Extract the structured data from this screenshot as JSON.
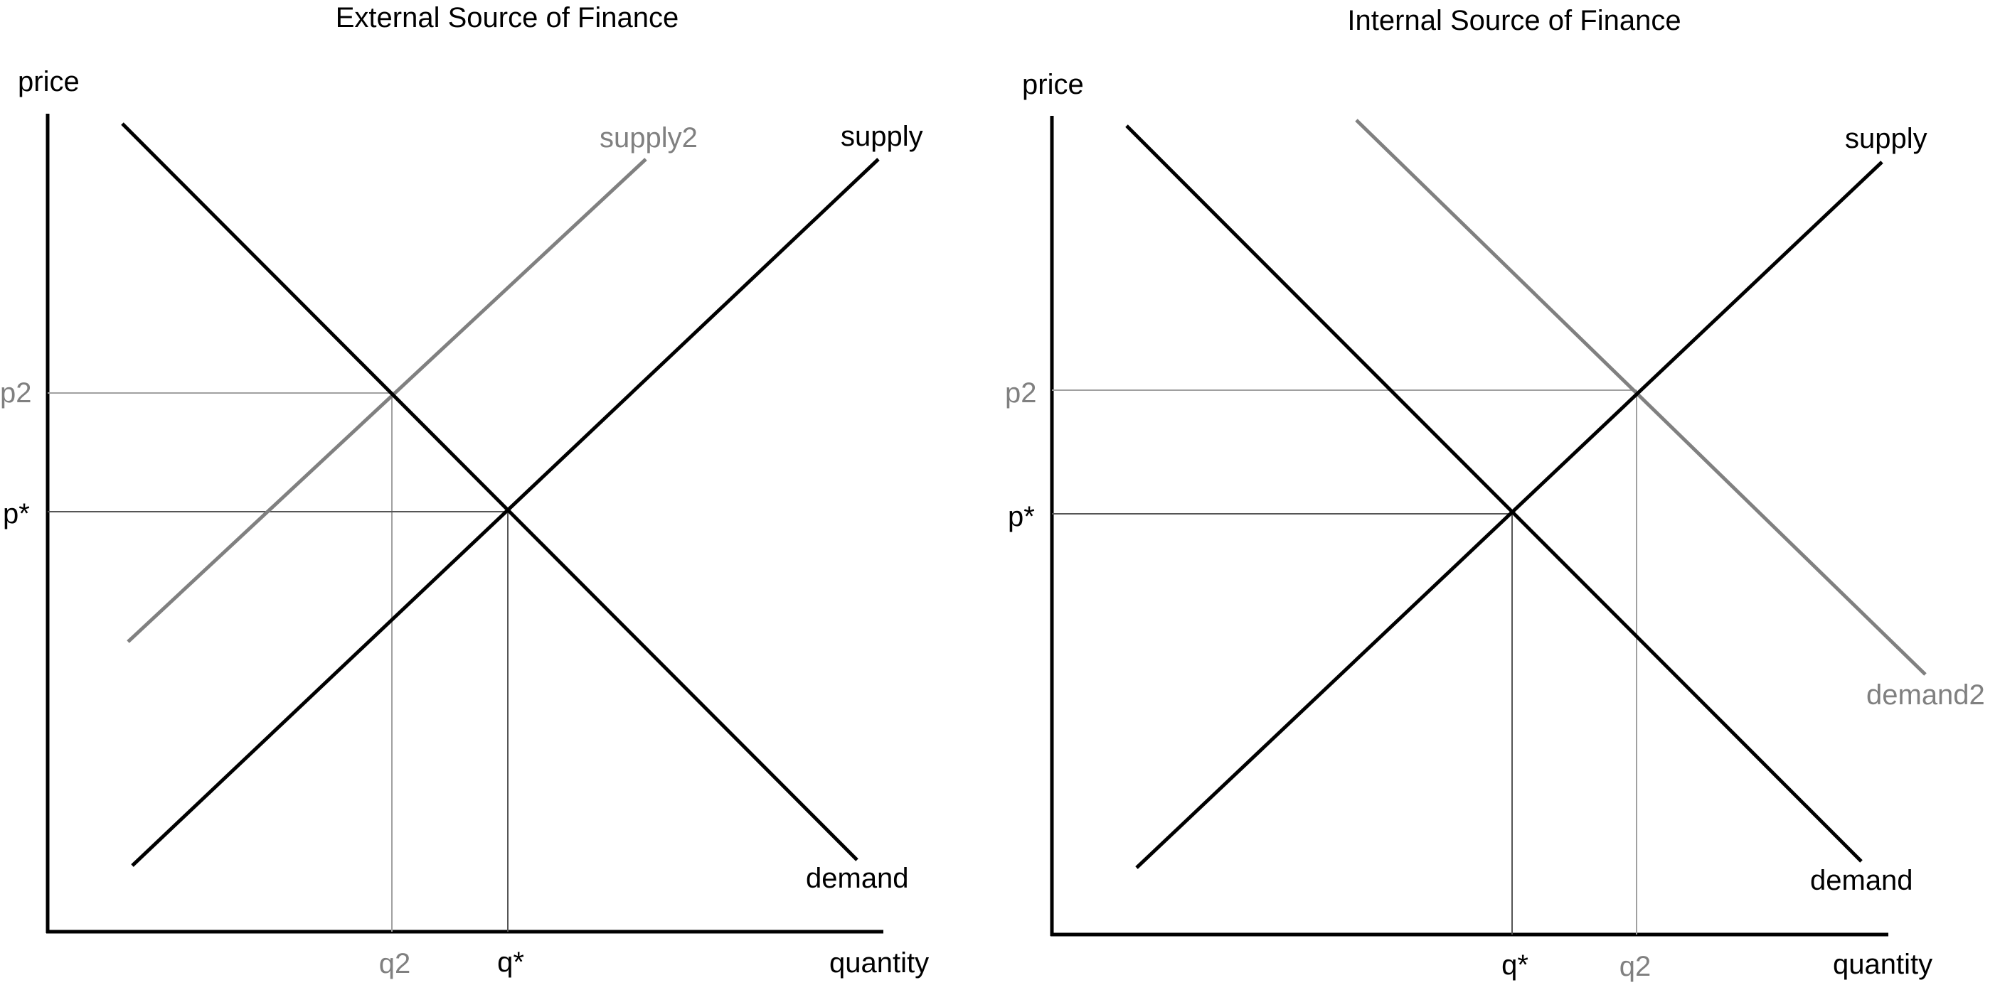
{
  "colors": {
    "primary": "#000000",
    "shifted": "#808080",
    "guide_primary": "#555555",
    "guide_shifted": "#a0a0a0"
  },
  "panels": [
    {
      "title": "External Source of Finance",
      "y_axis_label": "price",
      "x_axis_label": "quantity",
      "curves": {
        "supply": "supply",
        "demand": "demand",
        "shifted": "supply2"
      },
      "ticks": {
        "p_star": "p*",
        "p2": "p2",
        "q_star": "q*",
        "q2": "q2"
      }
    },
    {
      "title": "Internal Source of Finance",
      "y_axis_label": "price",
      "x_axis_label": "quantity",
      "curves": {
        "supply": "supply",
        "demand": "demand",
        "shifted": "demand2"
      },
      "ticks": {
        "p_star": "p*",
        "p2": "p2",
        "q_star": "q*",
        "q2": "q2"
      }
    }
  ]
}
